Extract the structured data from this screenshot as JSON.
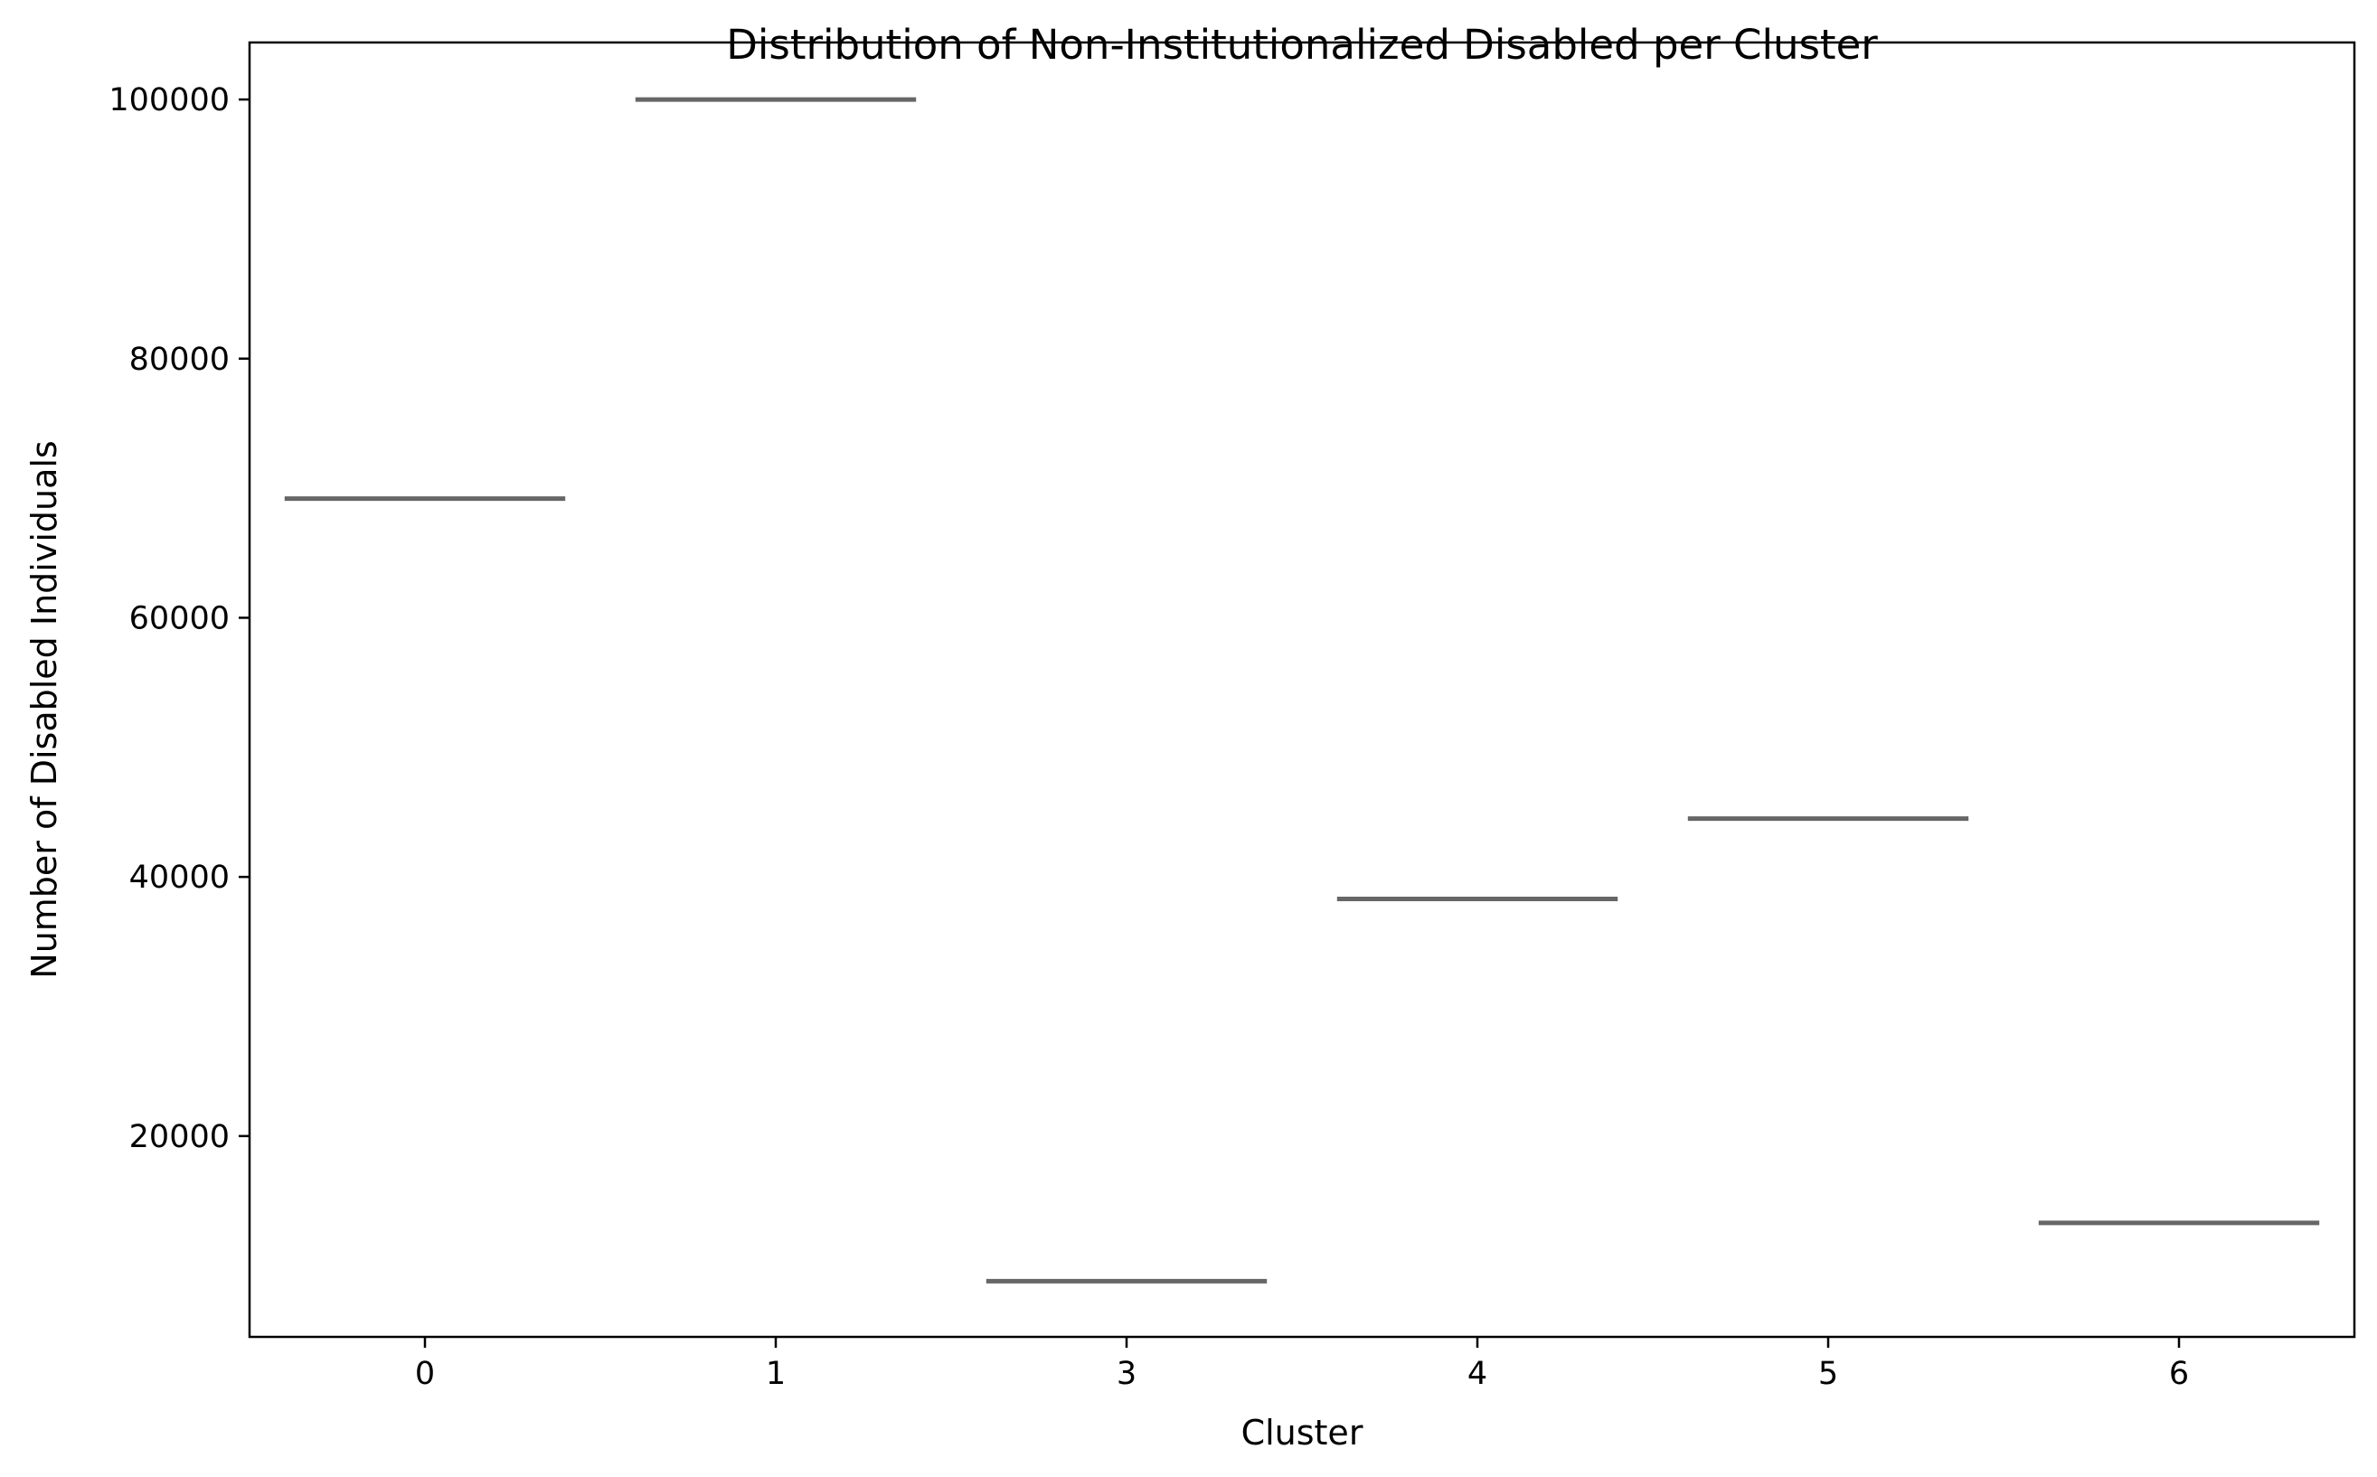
{
  "chart_data": {
    "type": "box",
    "title": "Distribution of Non-Institutionalized Disabled per Cluster",
    "xlabel": "Cluster",
    "ylabel": "Number of Disabled Individuals",
    "categories": [
      "0",
      "1",
      "3",
      "4",
      "5",
      "6"
    ],
    "values": [
      69200,
      100000,
      8800,
      38300,
      44500,
      13300
    ],
    "ylim": [
      4500,
      104400
    ],
    "yticks": [
      20000,
      40000,
      60000,
      80000,
      100000
    ],
    "ytick_labels": [
      "20000",
      "40000",
      "60000",
      "80000",
      "100000"
    ],
    "grid": false,
    "line_color": "#666666"
  }
}
